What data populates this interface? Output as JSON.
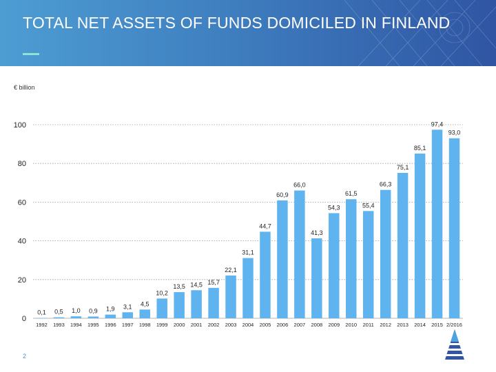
{
  "slide": {
    "title": "TOTAL NET ASSETS OF FUNDS DOMICILED IN FINLAND",
    "page_number": "2",
    "colors": {
      "header_start": "#4d9dd3",
      "header_end": "#2f55a3",
      "bar": "#5fb4f0",
      "underline": "#8fe3d3"
    }
  },
  "chart_data": {
    "type": "bar",
    "unit_label": "€ billion",
    "categories": [
      "1992",
      "1993",
      "1994",
      "1995",
      "1996",
      "1997",
      "1998",
      "1999",
      "2000",
      "2001",
      "2002",
      "2003",
      "2004",
      "2005",
      "2006",
      "2007",
      "2008",
      "2009",
      "2010",
      "2011",
      "2012",
      "2013",
      "2014",
      "2015",
      "2/2016"
    ],
    "values": [
      0.1,
      0.5,
      1.0,
      0.9,
      1.9,
      3.1,
      4.5,
      10.2,
      13.5,
      14.5,
      15.7,
      22.1,
      31.1,
      44.7,
      60.9,
      66.0,
      41.3,
      54.3,
      61.5,
      55.4,
      66.3,
      75.1,
      85.1,
      97.4,
      93.0
    ],
    "value_labels": [
      "0,1",
      "0,5",
      "1,0",
      "0,9",
      "1,9",
      "3,1",
      "4,5",
      "10,2",
      "13,5",
      "14,5",
      "15,7",
      "22,1",
      "31,1",
      "44,7",
      "60,9",
      "66,0",
      "41,3",
      "54,3",
      "61,5",
      "55,4",
      "66,3",
      "75,1",
      "85,1",
      "97,4",
      "93,0"
    ],
    "y_ticks": [
      "0",
      "20",
      "40",
      "60",
      "80",
      "100"
    ],
    "ylim": [
      0,
      100
    ],
    "grid": "dashed horizontal",
    "xlabel": "",
    "ylabel": ""
  }
}
